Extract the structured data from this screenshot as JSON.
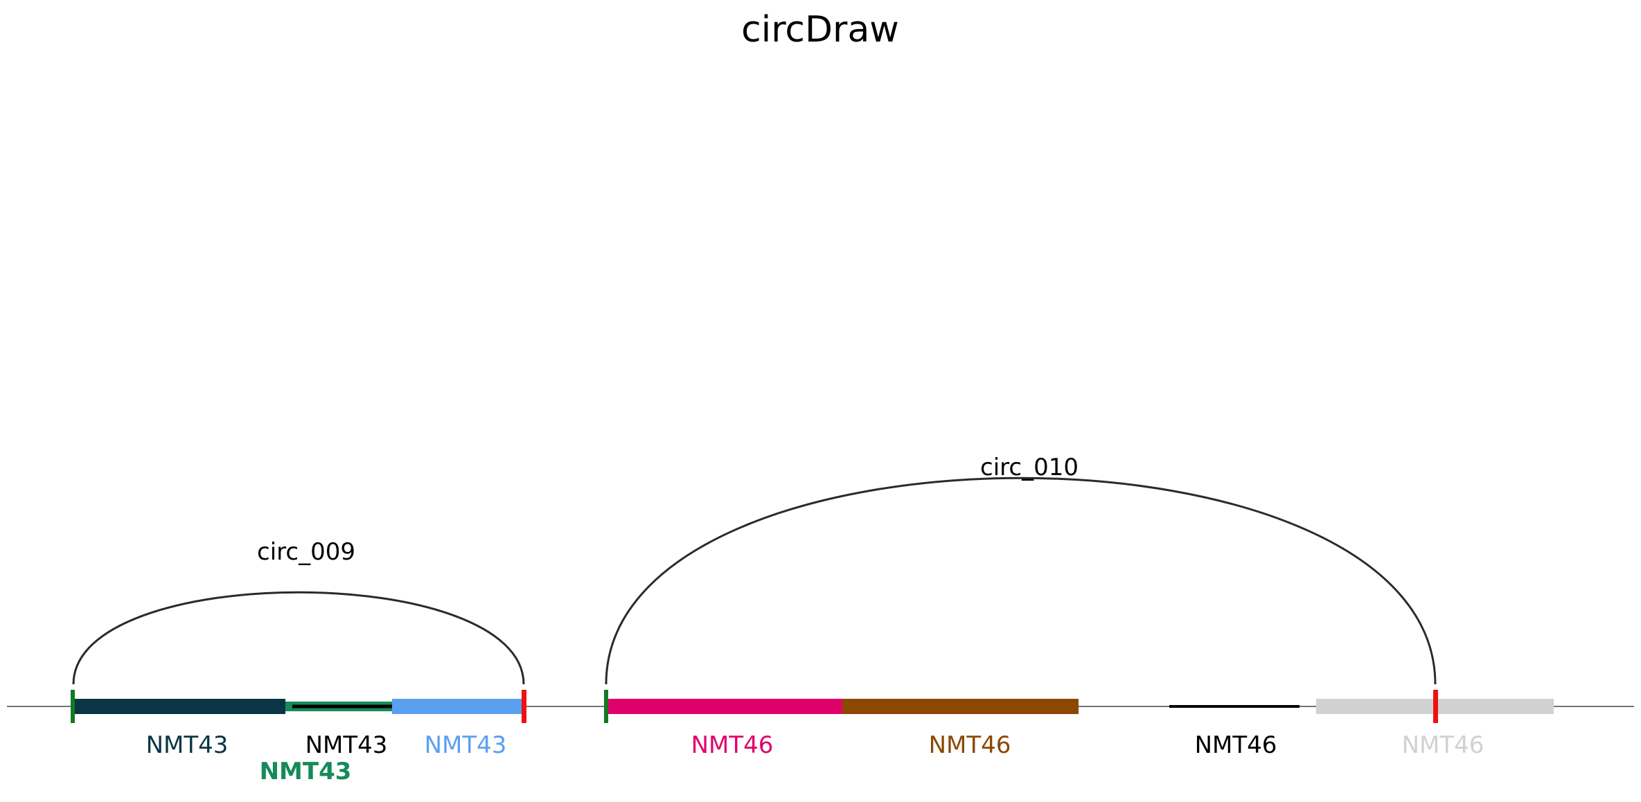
{
  "title": "circDraw",
  "circles": [
    {
      "label": "circ_009",
      "segments": [
        {
          "gene": "NMT43",
          "color": "#0b3544",
          "style": "thick"
        },
        {
          "gene": "NMT43",
          "color": "#168a5a",
          "style": "thick-with-core",
          "core_color": "#000000"
        },
        {
          "gene": "NMT43",
          "color": "#5b9ff0",
          "style": "thick"
        }
      ],
      "labels": [
        {
          "text": "NMT43",
          "color": "#0b3544",
          "bold": false
        },
        {
          "text": "NMT43",
          "color": "#000000",
          "bold": false
        },
        {
          "text": "NMT43",
          "color": "#5b9ff0",
          "bold": false
        },
        {
          "text": "NMT43",
          "color": "#168a5a",
          "bold": true
        }
      ]
    },
    {
      "label": "circ_010",
      "segments": [
        {
          "gene": "NMT46",
          "color": "#e0006a",
          "style": "thick"
        },
        {
          "gene": "NMT46",
          "color": "#8c4700",
          "style": "thick"
        },
        {
          "gene": "NMT46",
          "color": "#000000",
          "style": "thin"
        },
        {
          "gene": "NMT46",
          "color": "#cfd1d3",
          "style": "thick"
        }
      ],
      "labels": [
        {
          "text": "NMT46",
          "color": "#e0006a",
          "bold": false
        },
        {
          "text": "NMT46",
          "color": "#8c4700",
          "bold": false
        },
        {
          "text": "NMT46",
          "color": "#000000",
          "bold": false
        },
        {
          "text": "NMT46",
          "color": "#cfd1d3",
          "bold": false
        }
      ]
    }
  ],
  "colors": {
    "start_marker": "#127a22",
    "end_marker": "#ee1111",
    "arc": "#2a2a2a",
    "baseline": "#444444"
  }
}
